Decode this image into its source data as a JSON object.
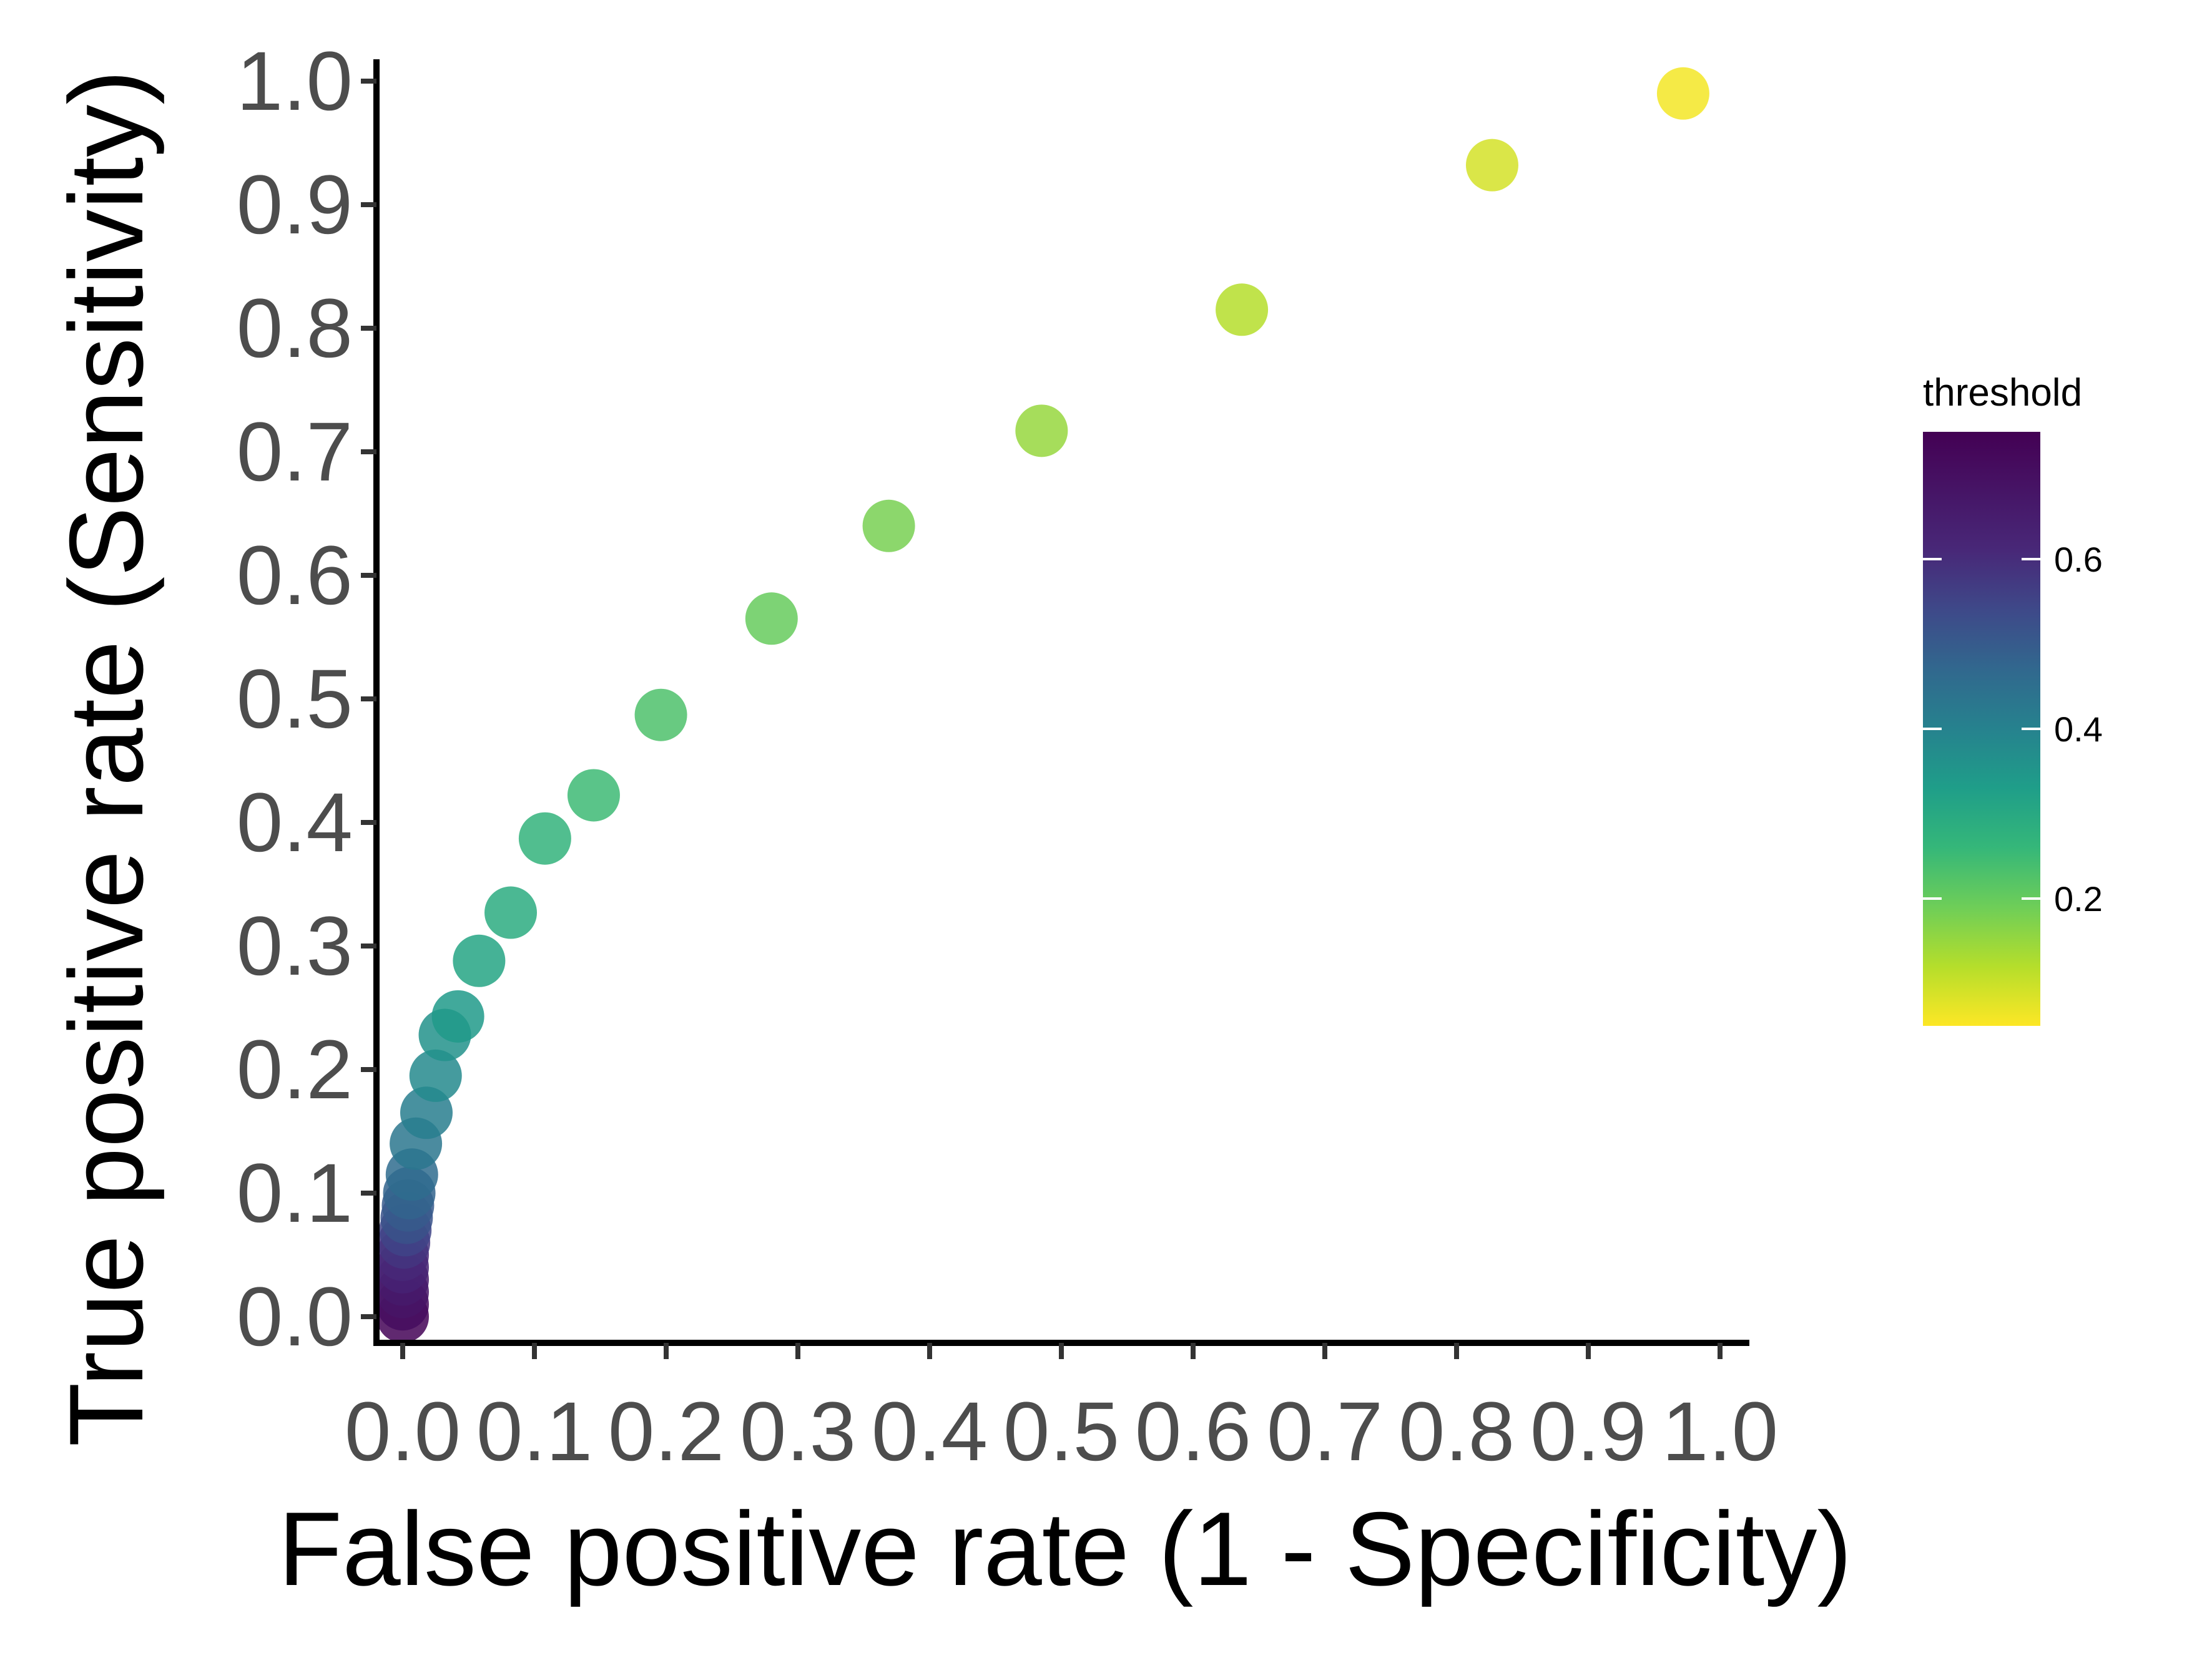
{
  "chart_data": {
    "type": "scatter",
    "title": "",
    "xlabel": "False positive rate (1 - Specificity)",
    "ylabel": "True positive rate (Sensitivity)",
    "xlim": [
      -0.02,
      1.02
    ],
    "ylim": [
      -0.02,
      1.02
    ],
    "x_ticks": [
      0.0,
      0.1,
      0.2,
      0.3,
      0.4,
      0.5,
      0.6,
      0.7,
      0.8,
      0.9,
      1.0
    ],
    "x_tick_labels": [
      "0.0",
      "0.1",
      "0.2",
      "0.3",
      "0.4",
      "0.5",
      "0.6",
      "0.7",
      "0.8",
      "0.9",
      "1.0"
    ],
    "y_ticks": [
      0.0,
      0.1,
      0.2,
      0.3,
      0.4,
      0.5,
      0.6,
      0.7,
      0.8,
      0.9,
      1.0
    ],
    "y_tick_labels": [
      "0.0",
      "0.1",
      "0.2",
      "0.3",
      "0.4",
      "0.5",
      "0.6",
      "0.7",
      "0.8",
      "0.9",
      "1.0"
    ],
    "grid": false,
    "color_scale": "viridis (reversed: high threshold = purple, low = yellow)",
    "legend": {
      "title": "threshold",
      "placement": "right",
      "range": [
        0.05,
        0.75
      ],
      "ticks": [
        0.6,
        0.4,
        0.2
      ],
      "tick_labels": [
        "0.6",
        "0.4",
        "0.2"
      ]
    },
    "points": [
      {
        "x": 0.0,
        "y": 0.0,
        "threshold": 0.74
      },
      {
        "x": 0.0,
        "y": 0.01,
        "threshold": 0.71
      },
      {
        "x": 0.0,
        "y": 0.02,
        "threshold": 0.68
      },
      {
        "x": 0.0,
        "y": 0.03,
        "threshold": 0.66
      },
      {
        "x": 0.0,
        "y": 0.04,
        "threshold": 0.63
      },
      {
        "x": 0.0,
        "y": 0.05,
        "threshold": 0.61
      },
      {
        "x": 0.001,
        "y": 0.06,
        "threshold": 0.58
      },
      {
        "x": 0.002,
        "y": 0.07,
        "threshold": 0.55
      },
      {
        "x": 0.003,
        "y": 0.08,
        "threshold": 0.52
      },
      {
        "x": 0.004,
        "y": 0.09,
        "threshold": 0.5
      },
      {
        "x": 0.005,
        "y": 0.1,
        "threshold": 0.48
      },
      {
        "x": 0.007,
        "y": 0.115,
        "threshold": 0.46
      },
      {
        "x": 0.01,
        "y": 0.14,
        "threshold": 0.43
      },
      {
        "x": 0.018,
        "y": 0.165,
        "threshold": 0.41
      },
      {
        "x": 0.025,
        "y": 0.195,
        "threshold": 0.38
      },
      {
        "x": 0.032,
        "y": 0.228,
        "threshold": 0.36
      },
      {
        "x": 0.042,
        "y": 0.243,
        "threshold": 0.34
      },
      {
        "x": 0.058,
        "y": 0.288,
        "threshold": 0.31
      },
      {
        "x": 0.082,
        "y": 0.327,
        "threshold": 0.29
      },
      {
        "x": 0.108,
        "y": 0.387,
        "threshold": 0.27
      },
      {
        "x": 0.145,
        "y": 0.422,
        "threshold": 0.25
      },
      {
        "x": 0.196,
        "y": 0.487,
        "threshold": 0.23
      },
      {
        "x": 0.28,
        "y": 0.565,
        "threshold": 0.2
      },
      {
        "x": 0.369,
        "y": 0.64,
        "threshold": 0.18
      },
      {
        "x": 0.485,
        "y": 0.717,
        "threshold": 0.15
      },
      {
        "x": 0.637,
        "y": 0.815,
        "threshold": 0.12
      },
      {
        "x": 0.827,
        "y": 0.932,
        "threshold": 0.09
      },
      {
        "x": 0.972,
        "y": 0.99,
        "threshold": 0.06
      }
    ]
  }
}
